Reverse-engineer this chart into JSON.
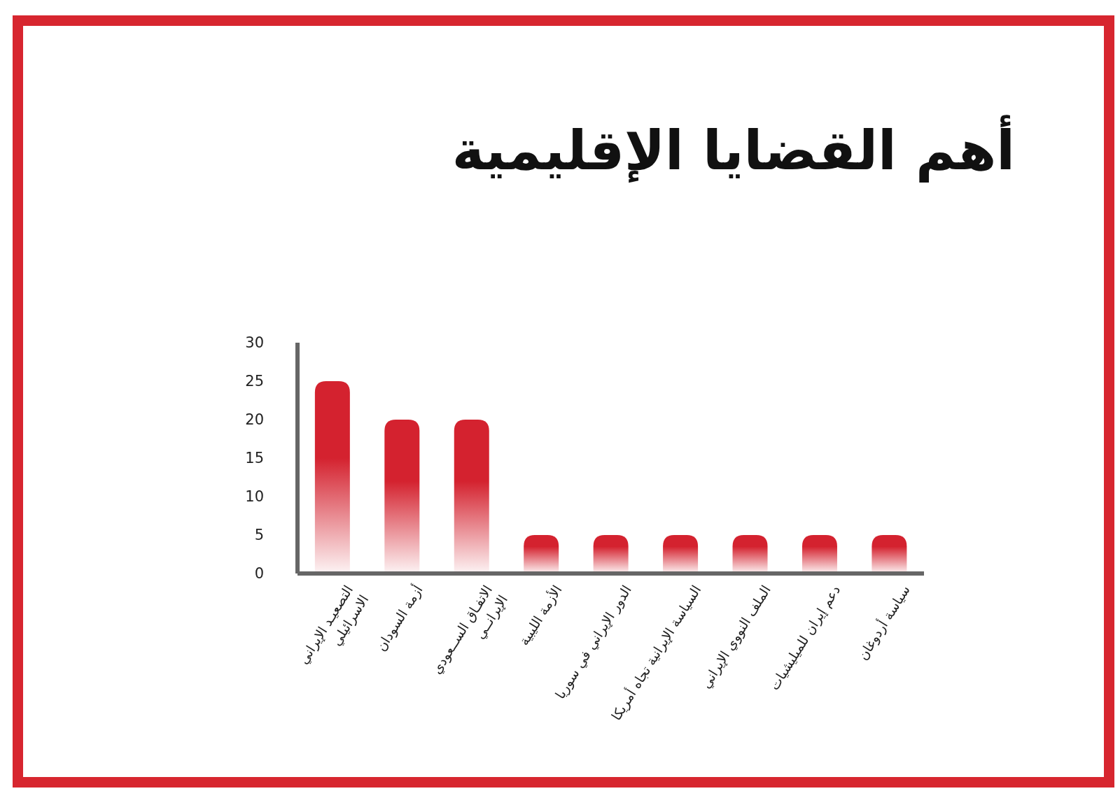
{
  "chart_data": {
    "type": "bar",
    "title": "أهم القضايا الإقليمية",
    "categories": [
      "التصعيـد الإيراني\nالاسرائيلي",
      "أزمة السودان",
      "الاتفـاق الســعودي\nالإيرانــي",
      "الأزمة الليبية",
      "الدور الإيراني في سوريا",
      "السياسة الإيرانية تجاه أمريكا",
      "الملف النووي الإيراني",
      "دعم إيران للميليشيات",
      "سياسة أردوغان"
    ],
    "values": [
      25,
      20,
      20,
      5,
      5,
      5,
      5,
      5,
      5
    ],
    "color": "#d4222f",
    "ylim": [
      0,
      30
    ],
    "yticks": [
      0,
      5,
      10,
      15,
      20,
      25,
      30
    ],
    "grid": false,
    "legend": false
  }
}
